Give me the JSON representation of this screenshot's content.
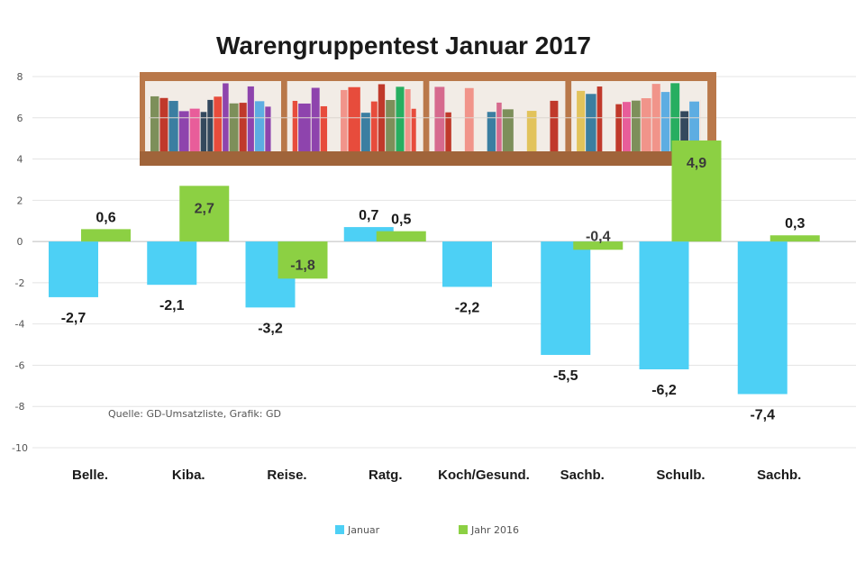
{
  "chart_data": {
    "type": "bar",
    "title": "Warengruppentest Januar 2017",
    "categories": [
      "Belle.",
      "Kiba.",
      "Reise.",
      "Ratg.",
      "Koch/Gesund.",
      "Sachb.",
      "Schulb.",
      "Sachb."
    ],
    "series": [
      {
        "name": "Januar",
        "color": "#4dd0f5",
        "values": [
          -2.7,
          -2.1,
          -3.2,
          0.7,
          -2.2,
          -5.5,
          -6.2,
          -7.4
        ]
      },
      {
        "name": "Jahr 2016",
        "color": "#8cd043",
        "values": [
          0.6,
          2.7,
          -1.8,
          0.5,
          0,
          -0.4,
          4.9,
          0.3
        ]
      }
    ],
    "labels": {
      "Januar": [
        "-2,7",
        "-2,1",
        "-3,2",
        "0,7",
        "-2,2",
        "-5,5",
        "-6,2",
        "-7,4"
      ],
      "Jahr 2016": [
        "0,6",
        "2,7",
        "-1,8",
        "0,5",
        null,
        "-0,4",
        "4,9",
        "0,3"
      ]
    },
    "ylim": [
      -10,
      8
    ],
    "yticks": [
      "8",
      "6",
      "4",
      "2",
      "0",
      "-2",
      "-4",
      "-6",
      "-8",
      "-10"
    ],
    "ytick_values": [
      8,
      6,
      4,
      2,
      0,
      -2,
      -4,
      -6,
      -8,
      -10
    ],
    "grid": true,
    "legend_position": "bottom-center",
    "source": "Quelle: GD-Umsatzliste, Grafik: GD"
  }
}
